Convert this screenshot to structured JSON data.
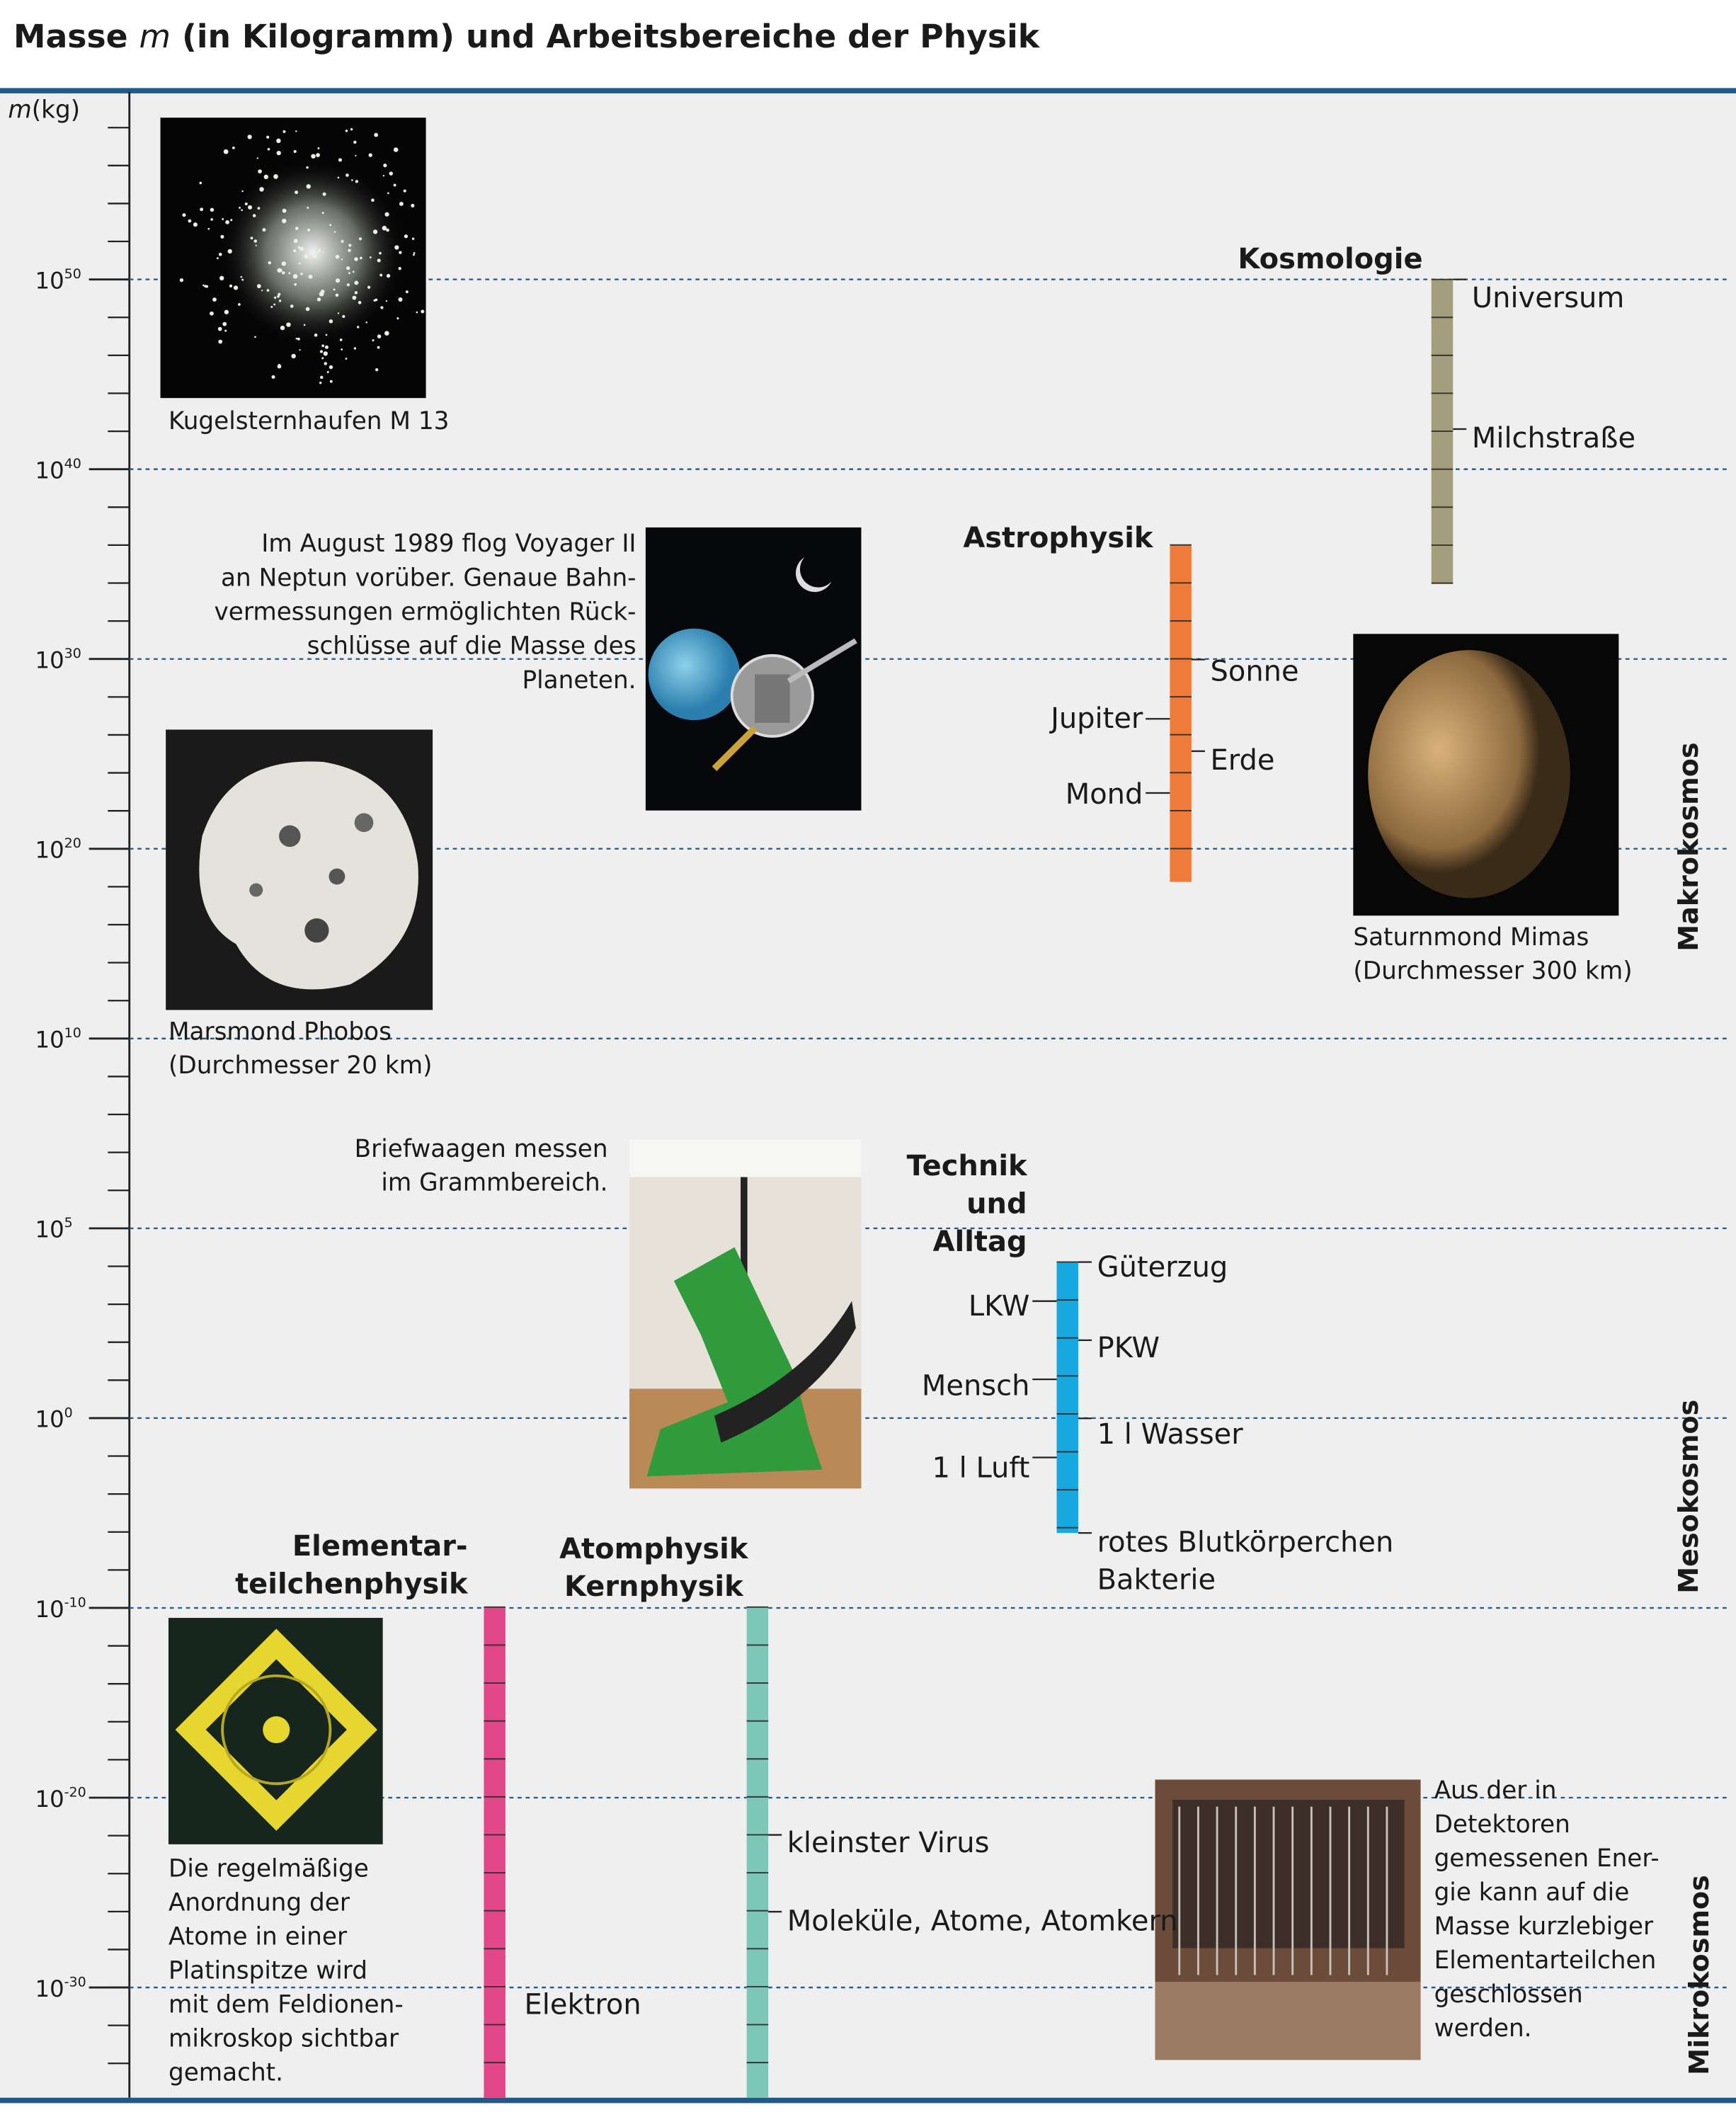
{
  "header": {
    "title": [
      "Masse ",
      "m",
      " (in Kilogramm) und Arbeitsbereiche der Physik"
    ]
  },
  "axis": {
    "label": [
      "m",
      "(kg)"
    ],
    "ticks": [
      {
        "base": "10",
        "exp": "50"
      },
      {
        "base": "10",
        "exp": "40"
      },
      {
        "base": "10",
        "exp": "30"
      },
      {
        "base": "10",
        "exp": "20"
      },
      {
        "base": "10",
        "exp": "10"
      },
      {
        "base": "10",
        "exp": "5"
      },
      {
        "base": "10",
        "exp": "0"
      },
      {
        "base": "10",
        "exp": "-10"
      },
      {
        "base": "10",
        "exp": "-20"
      },
      {
        "base": "10",
        "exp": "-30"
      }
    ]
  },
  "bars": [
    {
      "heading": [
        "Kosmologie"
      ],
      "items": [
        "Universum",
        "Milchstraße"
      ]
    },
    {
      "heading": [
        "Astrophysik"
      ],
      "items": [
        "Sonne",
        "Jupiter",
        "Erde",
        "Mond"
      ]
    },
    {
      "heading": [
        "Technik",
        "und",
        "Alltag"
      ],
      "items": [
        "Güterzug",
        "LKW",
        "PKW",
        "Mensch",
        "1 l Wasser",
        "1 l Luft",
        "rotes Blutkörperchen",
        "Bakterie"
      ]
    },
    {
      "heading": [
        "Elementar-",
        "teilchenphysik"
      ],
      "items": [
        "Elektron"
      ]
    },
    {
      "heading": [
        "Atomphysik",
        "Kernphysik"
      ],
      "items": [
        "kleinster Virus",
        "Moleküle, Atome, Atomkern"
      ]
    }
  ],
  "regions": [
    "Makrokosmos",
    "Mesokosmos",
    "Mikrokosmos"
  ],
  "photos": [
    {
      "caption": [
        "Kugelsternhaufen M 13"
      ]
    },
    {
      "caption": [
        "Im August 1989 flog Voyager II",
        "an Neptun vorüber. Genaue Bahn-",
        "vermessungen ermöglichten Rück-",
        "schlüsse auf die Masse des",
        "Planeten."
      ]
    },
    {
      "caption": [
        "Marsmond Phobos",
        "(Durchmesser 20 km)"
      ]
    },
    {
      "caption": [
        "Saturnmond Mimas",
        "(Durchmesser 300 km)"
      ]
    },
    {
      "caption": [
        "Briefwaagen messen",
        "im Grammbereich."
      ]
    },
    {
      "caption": [
        "Die regelmäßige",
        "Anordnung der",
        "Atome in einer",
        "Platinspitze wird",
        "mit dem Feldionen-",
        "mikroskop sichtbar",
        "gemacht."
      ]
    },
    {
      "caption": [
        "Aus der in",
        "Detektoren",
        "gemessenen Ener-",
        "gie kann auf die",
        "Masse kurzlebiger",
        "Elementarteilchen",
        "geschlossen",
        "werden."
      ]
    }
  ]
}
